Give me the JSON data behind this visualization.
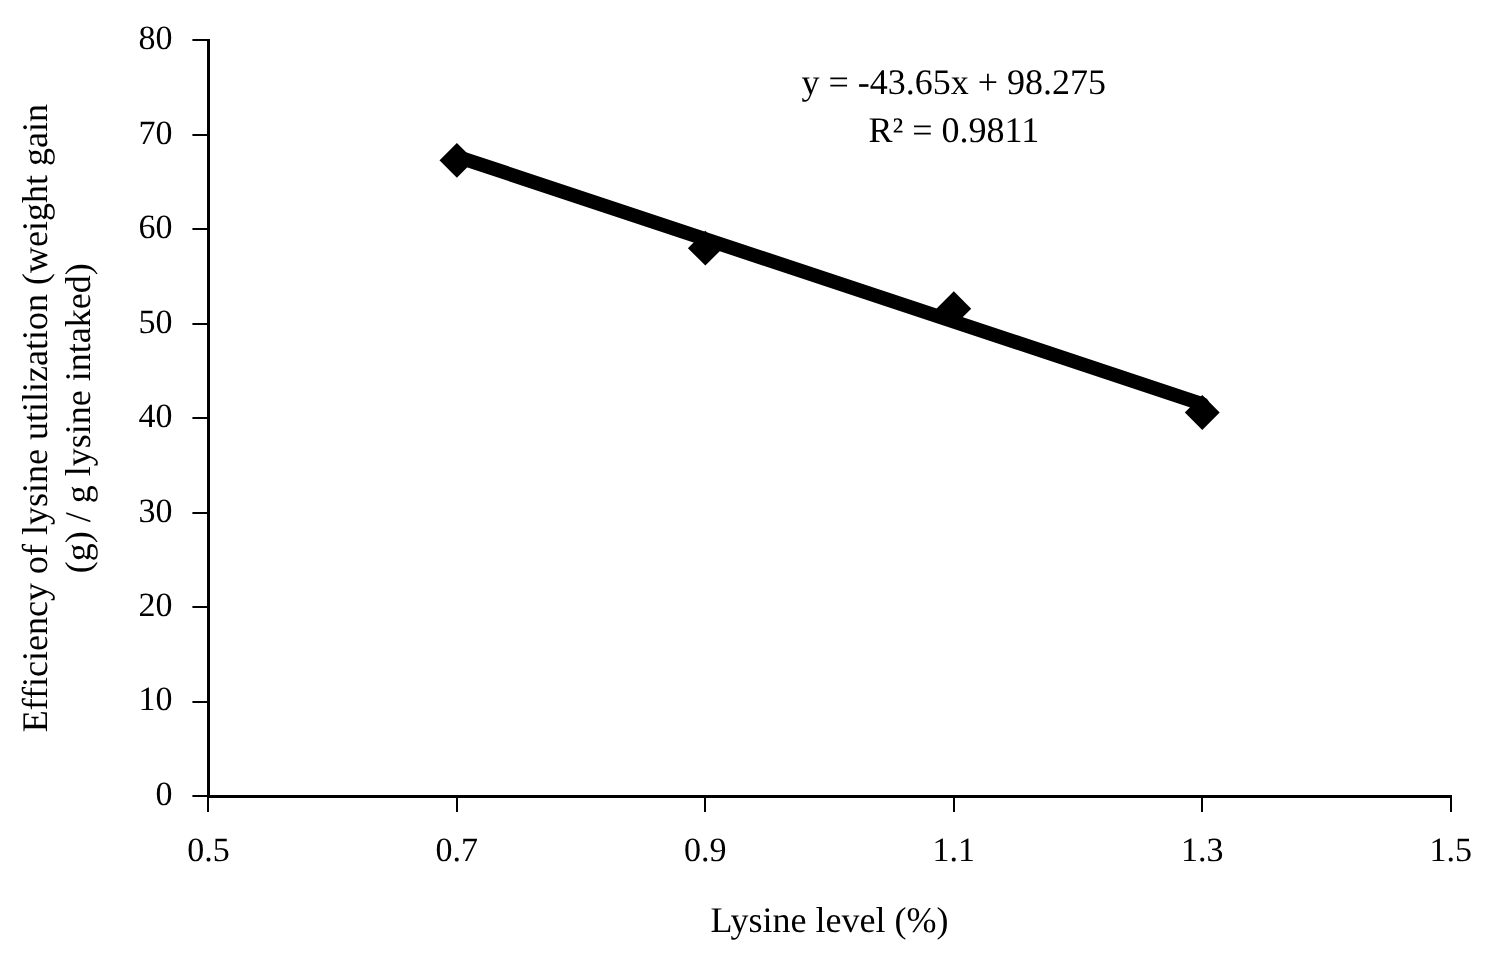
{
  "chart_data": {
    "type": "scatter",
    "xlabel": "Lysine level (%)",
    "ylabel": "Efficiency of lysine utilization (weight gain (g) / g lysine intaked)",
    "x": [
      0.7,
      0.9,
      1.1,
      1.3
    ],
    "series": [
      {
        "color": "#000000",
        "values": [
          67.3,
          58.0,
          51.6,
          40.6
        ],
        "marker": "diamond"
      },
      {
        "type": "line",
        "color": "#000000",
        "x": [
          0.7,
          1.3
        ],
        "values": [
          67.7,
          41.5
        ],
        "marker": "none"
      }
    ],
    "xlim": [
      0.5,
      1.5
    ],
    "xticks": [
      0.5,
      0.7,
      0.9,
      1.1,
      1.3,
      1.5
    ],
    "ylim": [
      0,
      80
    ],
    "yticks": [
      0,
      10,
      20,
      30,
      40,
      50,
      60,
      70,
      80
    ],
    "annotations": [
      "y = -43.65x + 98.275",
      "R² = 0.9811"
    ],
    "grid": false,
    "legend": false
  }
}
